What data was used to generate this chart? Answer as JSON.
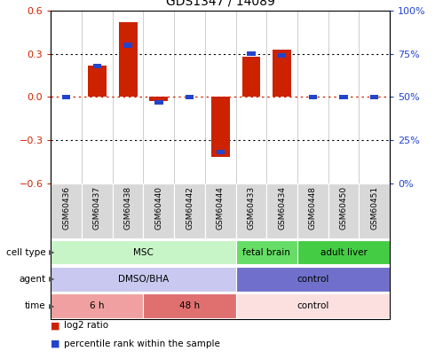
{
  "title": "GDS1347 / 14089",
  "samples": [
    "GSM60436",
    "GSM60437",
    "GSM60438",
    "GSM60440",
    "GSM60442",
    "GSM60444",
    "GSM60433",
    "GSM60434",
    "GSM60448",
    "GSM60450",
    "GSM60451"
  ],
  "log2_ratio": [
    0.0,
    0.22,
    0.52,
    -0.03,
    0.0,
    -0.42,
    0.28,
    0.33,
    0.0,
    0.0,
    0.0
  ],
  "percentile_rank": [
    50,
    68,
    80,
    47,
    50,
    18,
    75,
    74,
    50,
    50,
    50
  ],
  "ylim_left": [
    -0.6,
    0.6
  ],
  "yticks_left": [
    -0.6,
    -0.3,
    0.0,
    0.3,
    0.6
  ],
  "yticks_right": [
    0,
    25,
    50,
    75,
    100
  ],
  "cell_type_groups": [
    {
      "label": "MSC",
      "start": 0,
      "end": 5,
      "color": "#c8f5c8"
    },
    {
      "label": "fetal brain",
      "start": 6,
      "end": 7,
      "color": "#66dd66"
    },
    {
      "label": "adult liver",
      "start": 8,
      "end": 10,
      "color": "#44cc44"
    }
  ],
  "agent_groups": [
    {
      "label": "DMSO/BHA",
      "start": 0,
      "end": 5,
      "color": "#c8c8f0"
    },
    {
      "label": "control",
      "start": 6,
      "end": 10,
      "color": "#7070cc"
    }
  ],
  "time_groups": [
    {
      "label": "6 h",
      "start": 0,
      "end": 2,
      "color": "#f0a0a0"
    },
    {
      "label": "48 h",
      "start": 3,
      "end": 5,
      "color": "#e07070"
    },
    {
      "label": "control",
      "start": 6,
      "end": 10,
      "color": "#fce0e0"
    }
  ],
  "bar_color": "#cc2200",
  "blue_color": "#2244cc",
  "legend_items": [
    "log2 ratio",
    "percentile rank within the sample"
  ]
}
